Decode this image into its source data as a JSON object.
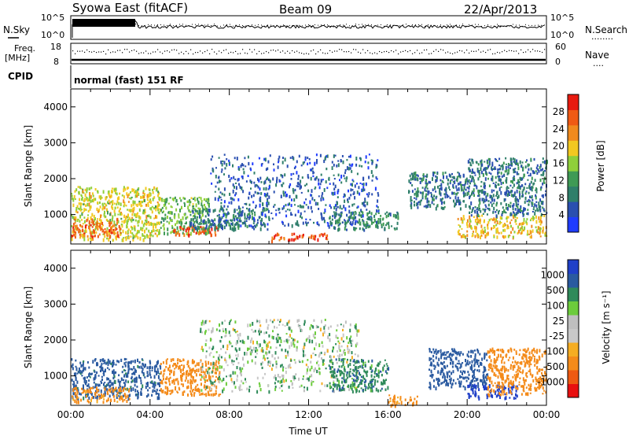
{
  "header": {
    "station": "Syowa East (fitACF)",
    "beam": "Beam 09",
    "date": "22/Apr/2013"
  },
  "housekeeping": {
    "nsky_label": "N.Sky",
    "nsearch_label": "N.Search",
    "nsearch_dots": "........",
    "noise_ticks_left": [
      "10^5",
      "10^0"
    ],
    "noise_ticks_right": [
      "10^5",
      "10^0"
    ],
    "freq_label": "Freq.",
    "freq_unit": "[MHz]",
    "freq_ticks": [
      "18",
      "8"
    ],
    "nave_label": "Nave",
    "nave_dots": "....",
    "nave_ticks": [
      "60",
      "0"
    ],
    "cpid_label": "CPID",
    "cpid_value": "normal (fast) 151 RF"
  },
  "colors": {
    "power_scale": [
      "#1f3cff",
      "#2a4fb0",
      "#2f7f6a",
      "#3f9a55",
      "#8fcf3a",
      "#f2c820",
      "#f08a1e",
      "#ef5a14",
      "#e81b10"
    ],
    "velocity_scale": [
      "#e81010",
      "#ee5a12",
      "#f48b1a",
      "#f5ad22",
      "#c8c8c8",
      "#bfbfbf",
      "#6ccc3c",
      "#2f8a5a",
      "#2a5aa0",
      "#2040c8"
    ]
  },
  "chart_data": [
    {
      "type": "heatmap",
      "name": "power",
      "ylabel": "Slant Range [km]",
      "yticks": [
        "1000",
        "2000",
        "3000",
        "4000"
      ],
      "ylim": [
        180,
        4500
      ],
      "colorbar_label": "Power [dB]",
      "colorbar_ticks": [
        "4",
        "8",
        "12",
        "16",
        "20",
        "24",
        "28"
      ],
      "colorbar_range": [
        0,
        32
      ],
      "xticks": [
        "00:00",
        "04:00",
        "08:00",
        "12:00",
        "16:00",
        "20:00",
        "00:00"
      ],
      "xlim_hours": [
        0,
        24
      ],
      "regions": [
        {
          "t0": 0.0,
          "t1": 4.5,
          "r0": 300,
          "r1": 1800,
          "value": 18
        },
        {
          "t0": 0.0,
          "t1": 2.5,
          "r0": 400,
          "r1": 900,
          "value": 26
        },
        {
          "t0": 4.5,
          "t1": 7.0,
          "r0": 500,
          "r1": 1500,
          "value": 14
        },
        {
          "t0": 5.0,
          "t1": 7.5,
          "r0": 450,
          "r1": 700,
          "value": 27
        },
        {
          "t0": 6.0,
          "t1": 10.0,
          "r0": 600,
          "r1": 1200,
          "value": 9
        },
        {
          "t0": 7.0,
          "t1": 15.5,
          "r0": 700,
          "r1": 2700,
          "value": 6
        },
        {
          "t0": 10.0,
          "t1": 13.0,
          "r0": 300,
          "r1": 500,
          "value": 28
        },
        {
          "t0": 13.0,
          "t1": 16.5,
          "r0": 600,
          "r1": 1100,
          "value": 10
        },
        {
          "t0": 17.0,
          "t1": 20.0,
          "r0": 1200,
          "r1": 2200,
          "value": 8
        },
        {
          "t0": 19.5,
          "t1": 24.0,
          "r0": 400,
          "r1": 1000,
          "value": 20
        },
        {
          "t0": 20.0,
          "t1": 24.0,
          "r0": 1000,
          "r1": 2600,
          "value": 8
        }
      ]
    },
    {
      "type": "heatmap",
      "name": "velocity",
      "ylabel": "Slant Range [km]",
      "yticks": [
        "1000",
        "2000",
        "3000",
        "4000"
      ],
      "ylim": [
        180,
        4500
      ],
      "colorbar_label": "Velocity [m s⁻¹]",
      "colorbar_ticks": [
        "1000",
        "500",
        "100",
        "25",
        "-25",
        "-100",
        "-500",
        "-1000"
      ],
      "xticks": [
        "00:00",
        "04:00",
        "08:00",
        "12:00",
        "16:00",
        "20:00",
        "00:00"
      ],
      "xlabel": "Time UT",
      "xlim_hours": [
        0,
        24
      ],
      "regions": [
        {
          "t0": 0.0,
          "t1": 4.5,
          "r0": 400,
          "r1": 1500,
          "value": 150
        },
        {
          "t0": 0.0,
          "t1": 3.0,
          "r0": 300,
          "r1": 700,
          "value": -150
        },
        {
          "t0": 4.5,
          "t1": 7.5,
          "r0": 500,
          "r1": 1500,
          "value": -300
        },
        {
          "t0": 6.5,
          "t1": 14.5,
          "r0": 600,
          "r1": 2600,
          "value": 0
        },
        {
          "t0": 13.0,
          "t1": 16.0,
          "r0": 600,
          "r1": 1500,
          "value": 80
        },
        {
          "t0": 16.0,
          "t1": 17.5,
          "r0": 200,
          "r1": 500,
          "value": -150
        },
        {
          "t0": 18.0,
          "t1": 21.0,
          "r0": 700,
          "r1": 1800,
          "value": 200
        },
        {
          "t0": 20.0,
          "t1": 22.5,
          "r0": 400,
          "r1": 800,
          "value": 700
        },
        {
          "t0": 21.0,
          "t1": 24.0,
          "r0": 500,
          "r1": 1800,
          "value": -300
        }
      ]
    }
  ]
}
